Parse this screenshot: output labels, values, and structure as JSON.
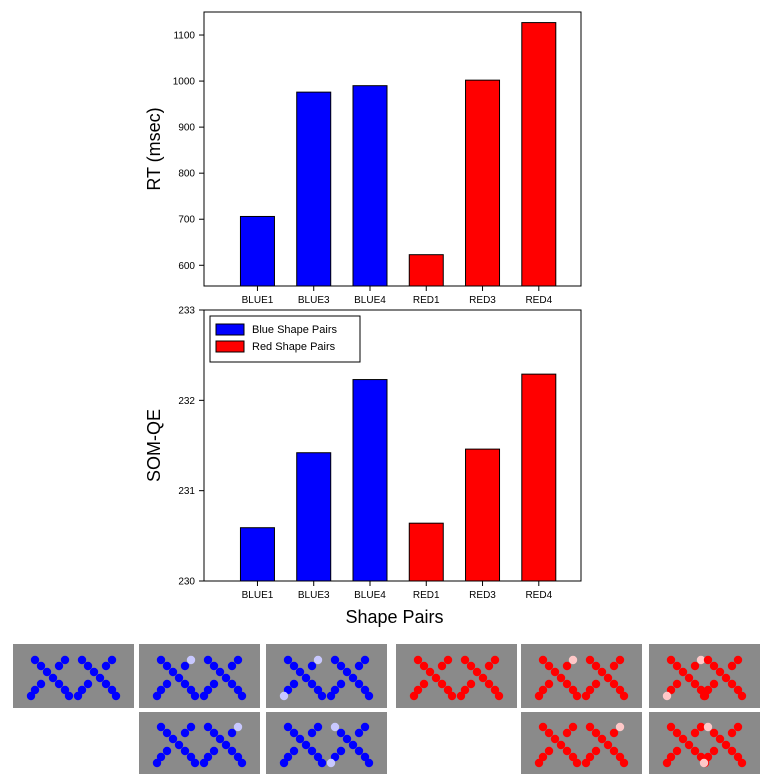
{
  "chart_data": [
    {
      "type": "bar",
      "categories": [
        "BLUE1",
        "BLUE3",
        "BLUE4",
        "RED1",
        "RED3",
        "RED4"
      ],
      "values": [
        706,
        976,
        990,
        623,
        1002,
        1127
      ],
      "bar_colors": [
        "#0000ff",
        "#0000ff",
        "#0000ff",
        "#ff0000",
        "#ff0000",
        "#ff0000"
      ],
      "title": "",
      "xlabel": "",
      "ylabel": "RT (msec)",
      "ylim": [
        555,
        1150
      ],
      "yticks": [
        "600",
        "700",
        "800",
        "900",
        "1000",
        "1100"
      ],
      "grid": false
    },
    {
      "type": "bar",
      "categories": [
        "BLUE1",
        "BLUE3",
        "BLUE4",
        "RED1",
        "RED3",
        "RED4"
      ],
      "values": [
        230.59,
        231.42,
        232.23,
        230.64,
        231.46,
        232.29
      ],
      "bar_colors": [
        "#0000ff",
        "#0000ff",
        "#0000ff",
        "#ff0000",
        "#ff0000",
        "#ff0000"
      ],
      "title": "",
      "xlabel": "Shape Pairs",
      "ylabel": "SOM-QE",
      "ylim": [
        230,
        233
      ],
      "yticks": [
        "230",
        "231",
        "232",
        "233"
      ],
      "grid": false,
      "legend": {
        "placement": "top-left",
        "entries": [
          {
            "label": "Blue Shape Pairs",
            "color": "#0000ff"
          },
          {
            "label": "Red Shape Pairs",
            "color": "#ff0000"
          }
        ]
      }
    }
  ],
  "stimuli": {
    "background": "#8a8a8a",
    "blue": "#0000ff",
    "blue_light": "#c8c8ff",
    "red": "#ff0000",
    "red_light": "#ffc8c8"
  }
}
